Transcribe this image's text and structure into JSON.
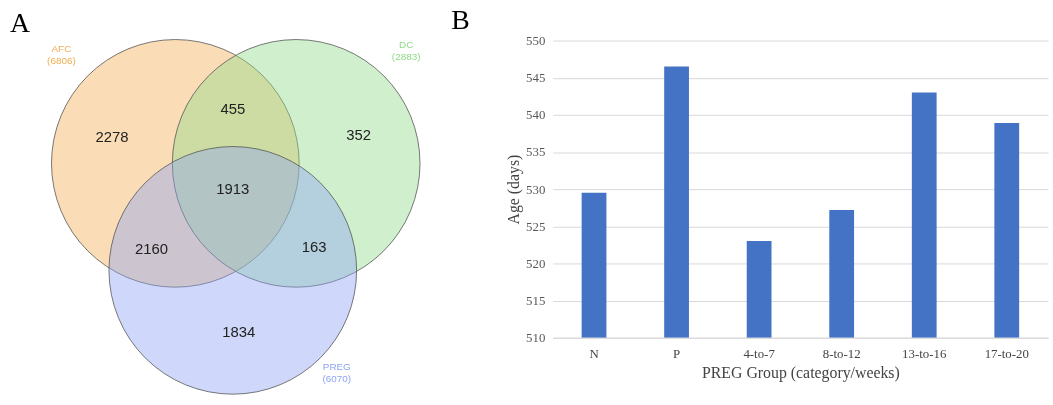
{
  "chart_data": [
    {
      "type": "other",
      "title": "A",
      "series": [
        {
          "name": "AFC",
          "color": "#f2ad52"
        },
        {
          "name": "DC",
          "color": "#8fdb87"
        },
        {
          "name": "PREG",
          "color": "#8da3f2"
        }
      ],
      "annotations": [
        "2278",
        "455",
        "352",
        "1913",
        "2160",
        "163",
        "1834",
        "(6806)",
        "(2883)",
        "(6070)"
      ]
    },
    {
      "type": "bar",
      "title": "B",
      "xlabel": "PREG Group (category/weeks)",
      "ylabel": "Age (days)",
      "categories": [
        "N",
        "P",
        "4-to-7",
        "8-to-12",
        "13-to-16",
        "17-to-20"
      ],
      "values": [
        529.5,
        546.5,
        523.0,
        527.2,
        543.0,
        538.9
      ],
      "color": "#4472c4",
      "ylim": [
        510,
        550
      ],
      "yticks": [
        510,
        515,
        520,
        525,
        530,
        535,
        540,
        545,
        550
      ],
      "grid": "y"
    }
  ]
}
